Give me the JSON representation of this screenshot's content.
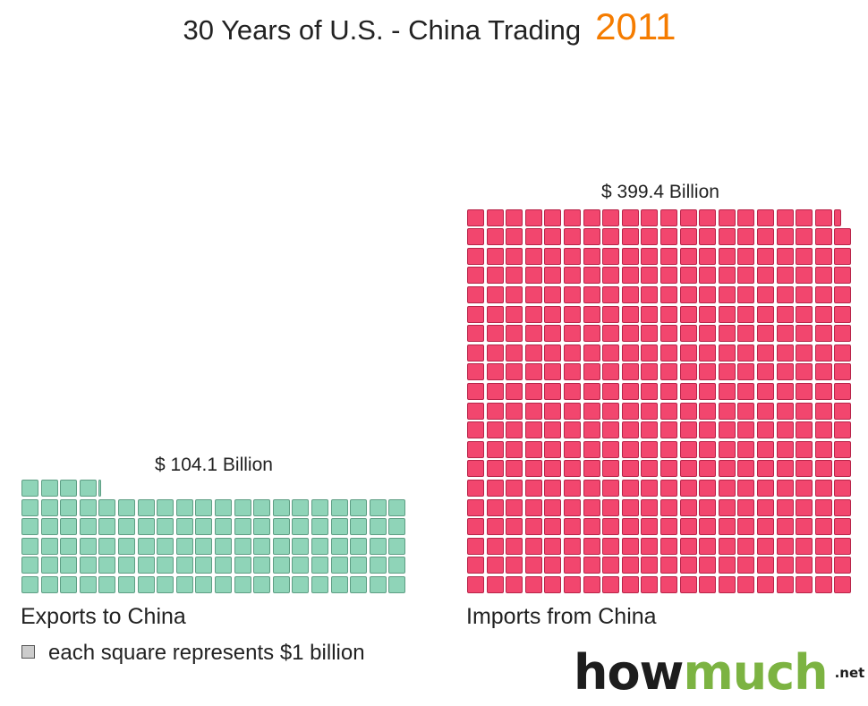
{
  "header": {
    "title": "30 Years of U.S. - China Trading",
    "year": "2011"
  },
  "colors": {
    "year": "#f57c00",
    "exports": "#8fd4b8",
    "exports_border": "#5e9e84",
    "imports": "#f2466e",
    "imports_border": "#b82449"
  },
  "chart_data": {
    "type": "waffle",
    "unit": "$1 billion per square",
    "series": [
      {
        "name": "Exports to China",
        "value": 104.1,
        "value_label": "$ 104.1 Billion"
      },
      {
        "name": "Imports from China",
        "value": 399.4,
        "value_label": "$ 399.4 Billion"
      }
    ]
  },
  "legend": {
    "text": "each square represents $1 billion"
  },
  "logo": {
    "how": "how",
    "much": "much",
    "net": ".net"
  }
}
